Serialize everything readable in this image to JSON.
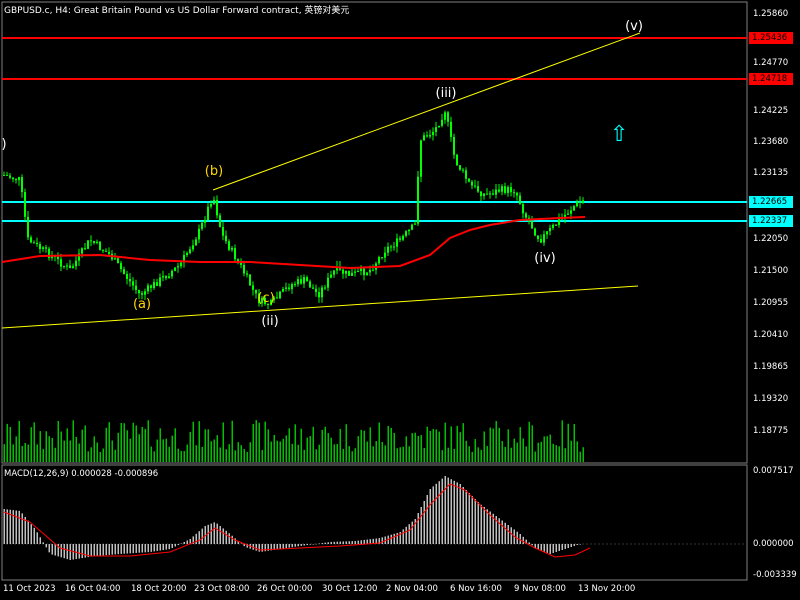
{
  "header": {
    "title": "GBPUSD.c, H4:  Great Britain Pound vs US Dollar Forward contract, 英镑对美元"
  },
  "macd": {
    "title": "MACD(12,26,9) 0.000028 -0.000896",
    "axis_labels": [
      "0.007517",
      "0.000000",
      "-0.003339"
    ]
  },
  "price_axis": {
    "labels": [
      "1.25860",
      "1.24225",
      "1.23680",
      "1.23135",
      "1.22050",
      "1.21500",
      "1.20955",
      "1.20410",
      "1.19865",
      "1.19320",
      "1.18775"
    ],
    "extra_labels": [
      "1.24770"
    ]
  },
  "price_tags": [
    {
      "value": "1.25436",
      "type": "resistance",
      "color": "#ff0000"
    },
    {
      "value": "1.24718",
      "type": "resistance",
      "color": "#ff0000"
    },
    {
      "value": "1.22665",
      "type": "level",
      "color": "#00ffff"
    },
    {
      "value": "1.22337",
      "type": "level",
      "color": "#00ffff"
    }
  ],
  "time_axis": {
    "labels": [
      "11 Oct 2023",
      "16 Oct 04:00",
      "18 Oct 20:00",
      "23 Oct 08:00",
      "26 Oct 00:00",
      "30 Oct 12:00",
      "2 Nov 04:00",
      "6 Nov 16:00",
      "9 Nov 08:00",
      "13 Nov 20:00"
    ]
  },
  "wave_labels": [
    {
      "text": "(a)",
      "color": "#ffd700"
    },
    {
      "text": "(b)",
      "color": "#ffd700"
    },
    {
      "text": "(c)",
      "color": "#ffd700"
    },
    {
      "text": "(ii)",
      "color": "#ffffff"
    },
    {
      "text": "(iii)",
      "color": "#ffffff"
    },
    {
      "text": "(iv)",
      "color": "#ffffff"
    },
    {
      "text": "(v)",
      "color": "#ffffff"
    },
    {
      "text": ")",
      "color": "#ffffff"
    }
  ],
  "signal": {
    "icon": "up-arrow-icon",
    "color": "#00ffff"
  },
  "colors": {
    "background": "#000000",
    "bull_candle": "#00ff00",
    "moving_average": "#ff0000",
    "trend_line": "#ffff00",
    "resistance": "#ff0000",
    "level": "#00ffff",
    "histogram": "#c0c0c0",
    "signal_line": "#ff0000"
  }
}
